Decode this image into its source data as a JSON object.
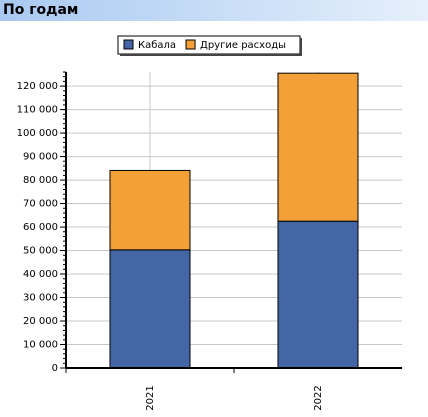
{
  "header": {
    "title": "По годам"
  },
  "chart_data": {
    "type": "bar",
    "stacked": true,
    "categories": [
      "2021",
      "2022"
    ],
    "series": [
      {
        "name": "Кабала",
        "color": "#4466a4",
        "values": [
          50300,
          62500
        ]
      },
      {
        "name": "Другие расходы",
        "color": "#f4a038",
        "values": [
          33800,
          63000
        ]
      }
    ],
    "ylim": [
      0,
      126000
    ],
    "yticks": [
      0,
      {
        "value": 10000,
        "label": "10 000"
      },
      {
        "value": 20000,
        "label": "20 000"
      },
      {
        "value": 30000,
        "label": "30 000"
      },
      {
        "value": 40000,
        "label": "40 000"
      },
      {
        "value": 50000,
        "label": "50 000"
      },
      {
        "value": 60000,
        "label": "60 000"
      },
      {
        "value": 70000,
        "label": "70 000"
      },
      {
        "value": 80000,
        "label": "80 000"
      },
      {
        "value": 90000,
        "label": "90 000"
      },
      {
        "value": 100000,
        "label": "100 000"
      },
      {
        "value": 110000,
        "label": "110 000"
      },
      {
        "value": 120000,
        "label": "120 000"
      }
    ],
    "grid": true,
    "legend": "top"
  }
}
